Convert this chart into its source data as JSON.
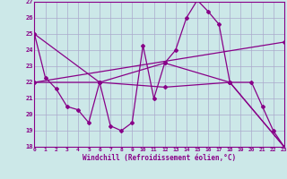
{
  "background_color": "#cce8e8",
  "line_color": "#880088",
  "grid_color": "#aaaacc",
  "xlabel": "Windchill (Refroidissement éolien,°C)",
  "ylim": [
    18,
    27
  ],
  "xlim": [
    0,
    23
  ],
  "yticks": [
    18,
    19,
    20,
    21,
    22,
    23,
    24,
    25,
    26,
    27
  ],
  "xticks": [
    0,
    1,
    2,
    3,
    4,
    5,
    6,
    7,
    8,
    9,
    10,
    11,
    12,
    13,
    14,
    15,
    16,
    17,
    18,
    19,
    20,
    21,
    22,
    23
  ],
  "series": [
    {
      "x": [
        0,
        1,
        2,
        3,
        4,
        5,
        6,
        7,
        8,
        9,
        10,
        11,
        12,
        13,
        14,
        15,
        16,
        17,
        18,
        20,
        21,
        22,
        23
      ],
      "y": [
        25,
        22.3,
        21.6,
        20.5,
        20.3,
        19.5,
        22.0,
        19.3,
        19.0,
        19.5,
        24.3,
        21.0,
        23.2,
        24.0,
        26.0,
        27.1,
        26.4,
        25.6,
        22.0,
        22.0,
        20.5,
        19.0,
        18.0
      ]
    },
    {
      "x": [
        0,
        6,
        12,
        18,
        23
      ],
      "y": [
        25.0,
        22.0,
        23.2,
        22.0,
        18.0
      ]
    },
    {
      "x": [
        0,
        6,
        12,
        18,
        23
      ],
      "y": [
        22.0,
        22.0,
        21.7,
        22.0,
        18.0
      ]
    },
    {
      "x": [
        0,
        23
      ],
      "y": [
        22.0,
        24.5
      ]
    }
  ]
}
